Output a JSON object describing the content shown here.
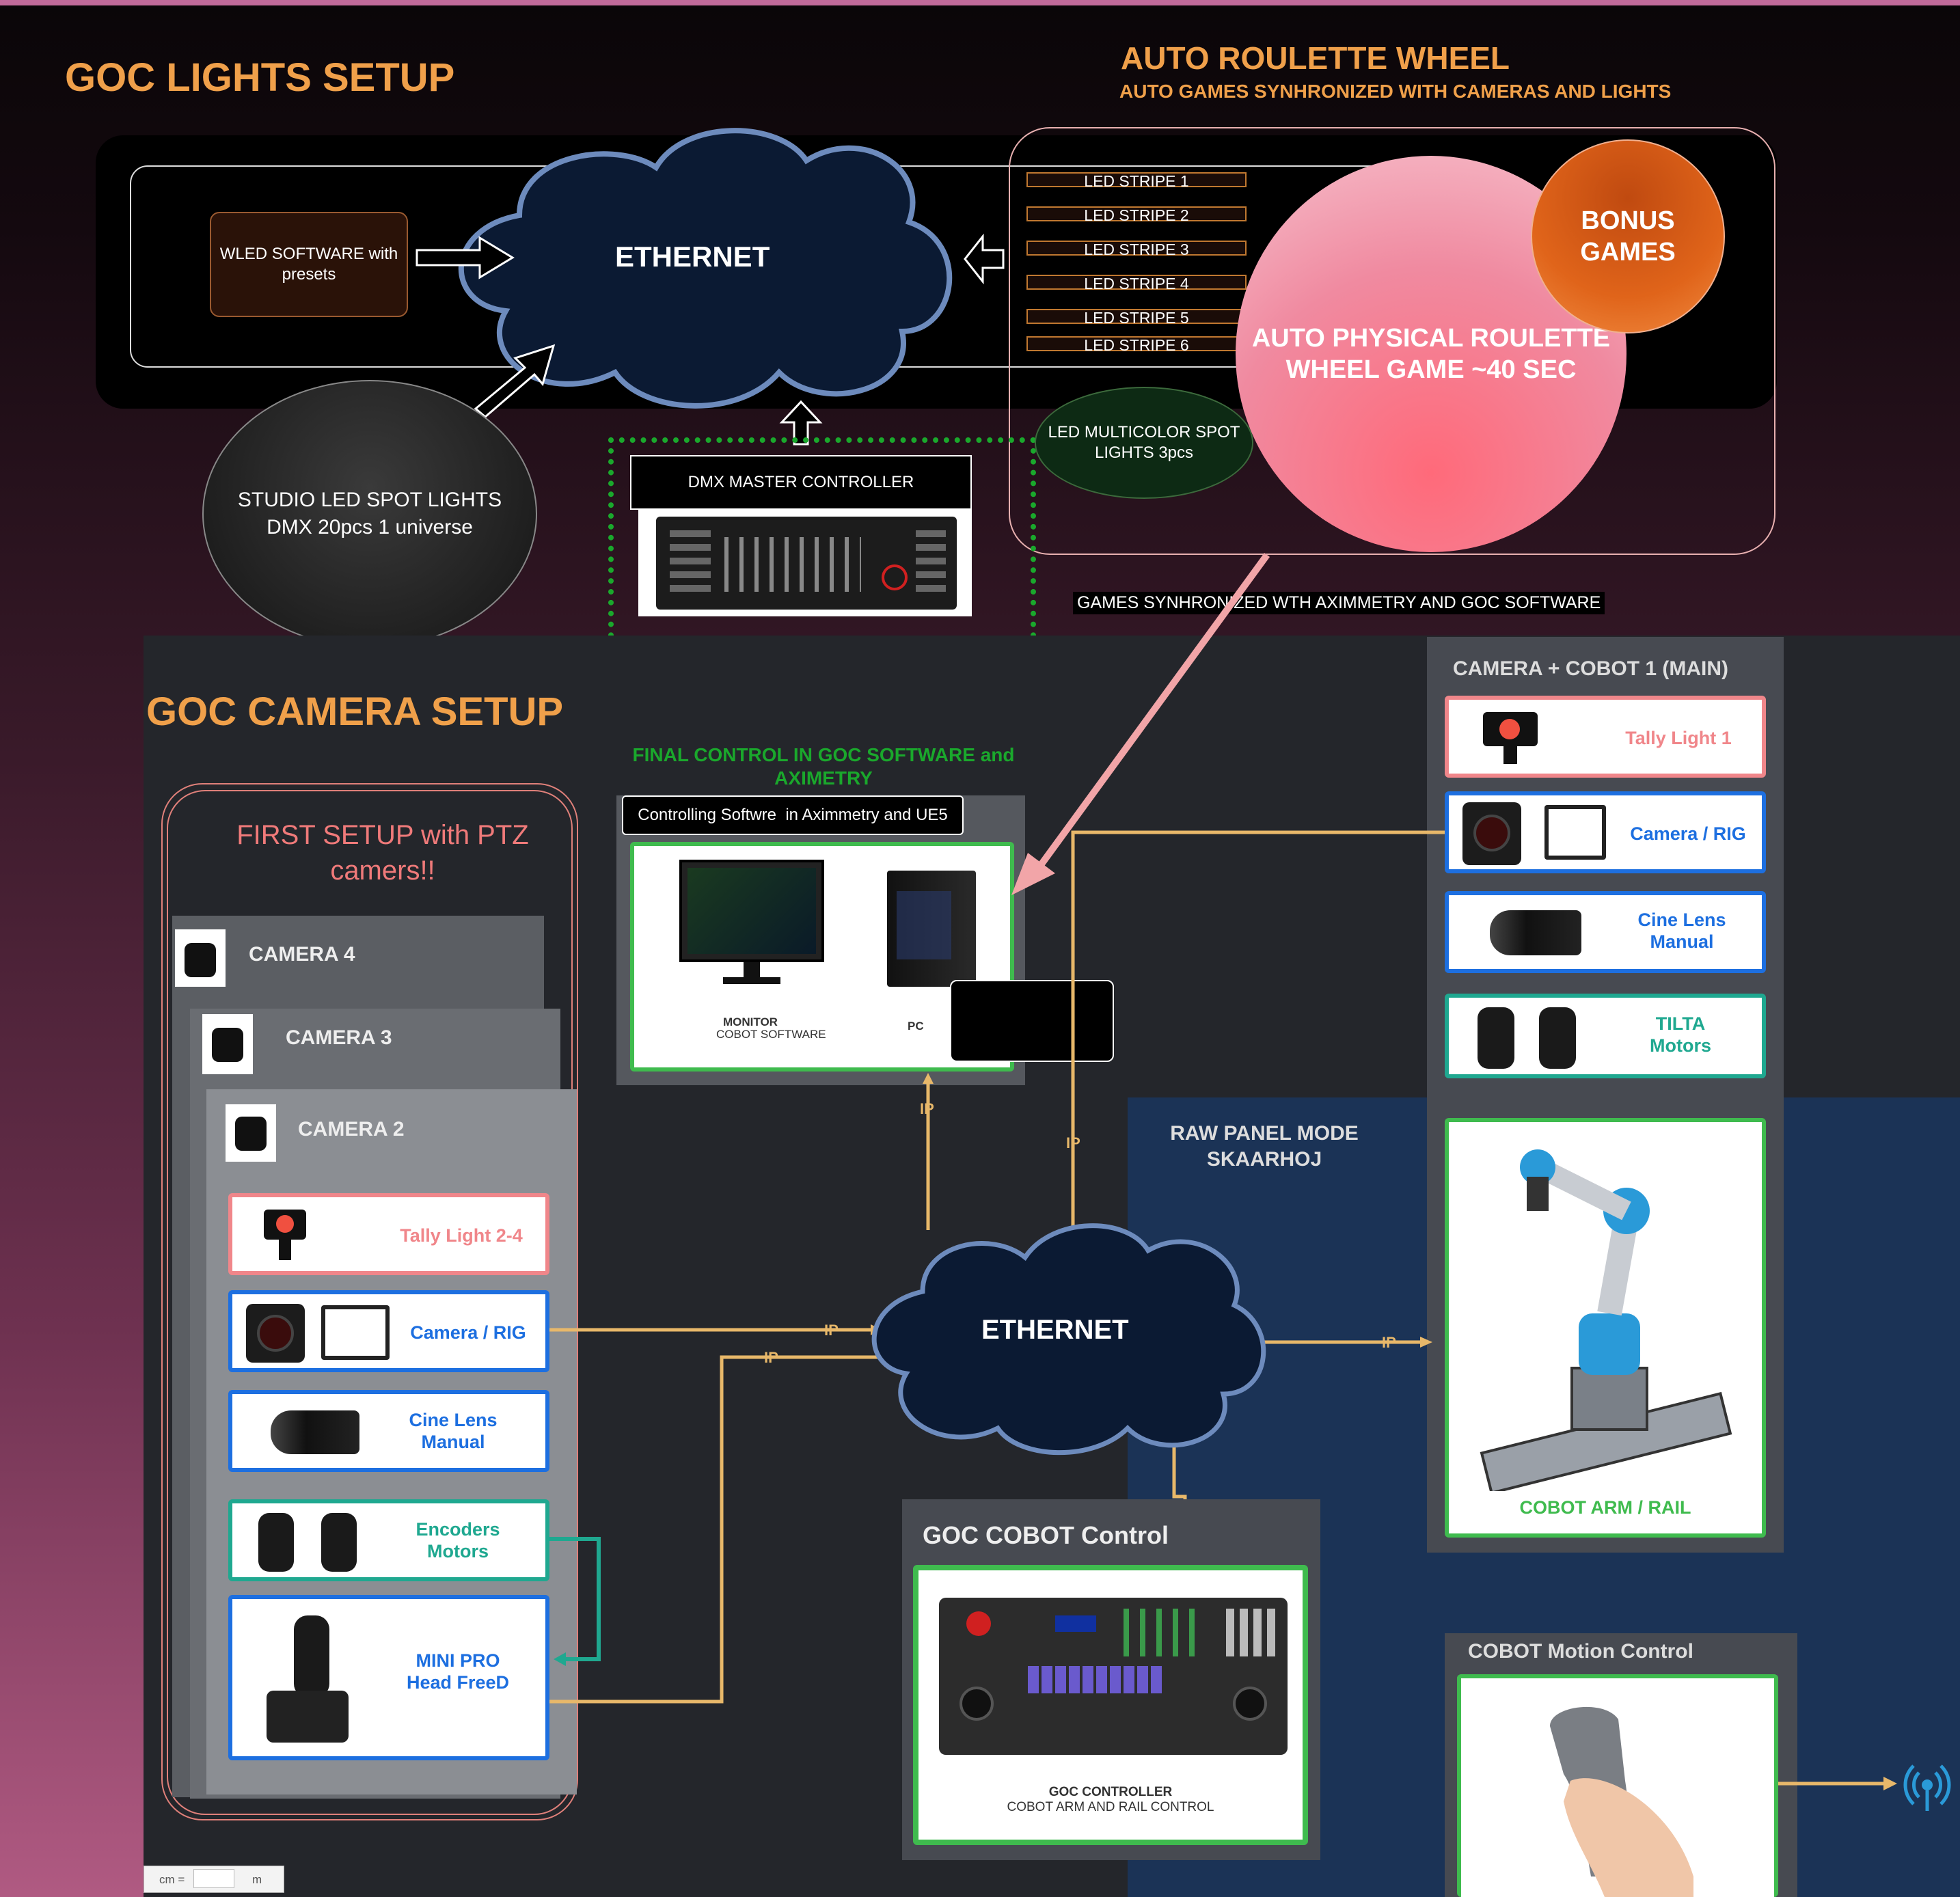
{
  "titles": {
    "lights": "GOC LIGHTS SETUP",
    "roulette": "AUTO ROULETTE WHEEL",
    "roulette_sub": "AUTO GAMES SYNHRONIZED WITH CAMERAS AND LIGHTS",
    "camera": "GOC CAMERA SETUP"
  },
  "lights": {
    "wled": "WLED SOFTWARE with presets",
    "ethernet": "ETHERNET",
    "studio_spots": "STUDIO LED SPOT LIGHTS DMX 20pcs 1 universe",
    "dmx": "DMX MASTER CONTROLLER",
    "stripes": [
      "LED STRIPE 1",
      "LED STRIPE 2",
      "LED STRIPE 3",
      "LED STRIPE 4",
      "LED STRIPE 5",
      "LED STRIPE 6"
    ],
    "multicolor": "LED MULTICOLOR SPOT LIGHTS 3pcs",
    "bonus": "BONUS GAMES",
    "roulette_game": "AUTO PHYSICAL ROULETTE WHEEL GAME ~40 SEC",
    "sync_note": "GAMES SYNHRONIZED WTH AXIMMETRY AND GOC SOFTWARE"
  },
  "control": {
    "final": "FINAL CONTROL IN GOC SOFTWARE and AXIMETRY",
    "software": "Controlling Softwre  in Aximmetry and UE5",
    "monitor_label": "MONITOR",
    "monitor_sub": "COBOT SOFTWARE",
    "pc_label": "PC"
  },
  "first_setup": {
    "title": "FIRST SETUP with PTZ camers!!",
    "cameras": [
      "CAMERA 4",
      "CAMERA 3",
      "CAMERA 2"
    ],
    "tally": "Tally Light 2-4",
    "camera_rig": "Camera / RIG",
    "cine_lens": "Cine Lens Manual",
    "encoders": "Encoders Motors",
    "mini_pro": "MINI PRO Head FreeD"
  },
  "network": {
    "ethernet": "ETHERNET",
    "ip": "IP"
  },
  "main_cam": {
    "title": "CAMERA + COBOT 1 (MAIN)",
    "tally": "Tally Light 1",
    "camera_rig": "Camera / RIG",
    "cine_lens": "Cine Lens Manual",
    "tilta": "TILTA Motors",
    "cobot": "COBOT ARM / RAIL"
  },
  "raw_panel": "RAW  PANEL MODE SKAARHOJ",
  "cobot_control": {
    "title": "GOC COBOT Control",
    "label": "GOC CONTROLLER",
    "sub": "COBOT ARM AND RAIL CONTROL"
  },
  "motion": {
    "title": "COBOT Motion Control"
  },
  "footer": {
    "unit1": "cm =",
    "unit2": "m"
  },
  "colors": {
    "header": "#f0a04a",
    "ip_line": "#e8b86a",
    "teal": "#1fa890",
    "blue_border": "#1d6fe0",
    "green_border": "#3fbb4e",
    "red_border": "#f0868a"
  }
}
